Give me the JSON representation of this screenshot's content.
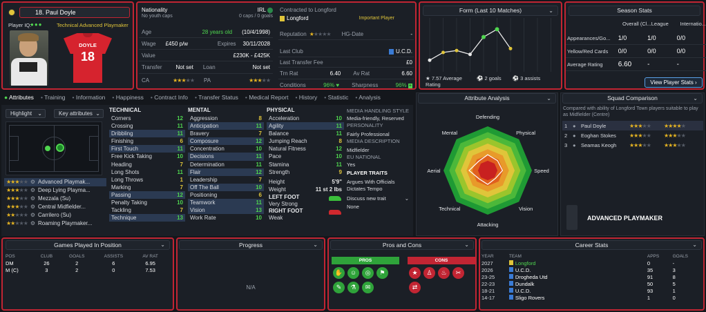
{
  "player": {
    "number_name": "18. Paul Doyle",
    "iq_label": "Player IQ:",
    "role": "Technical Advanced Playmaker",
    "shirt_name": "DOYLE",
    "shirt_number": "18"
  },
  "info": {
    "nationality_label": "Nationality",
    "nationality": "IRL",
    "nat_sub": "No youth caps",
    "nat_caps": "0 caps / 0 goals",
    "age_label": "Age",
    "age": "28 years old",
    "dob": "(10/4/1998)",
    "wage_label": "Wage",
    "wage": "£450 p/w",
    "expires_label": "Expires",
    "expires": "30/11/2028",
    "value_label": "Value",
    "value": "£230K - £425K",
    "transfer_label": "Transfer",
    "transfer": "Not set",
    "loan_label": "Loan",
    "loan": "Not set",
    "ca_label": "CA",
    "pa_label": "PA",
    "contracted_label": "Contracted to Longford",
    "club": "Longford",
    "status": "Important Player",
    "reputation_label": "Reputation",
    "hg_label": "HG-Date",
    "hg_value": "-",
    "last_club_label": "Last Club",
    "last_club": "U.C.D.",
    "ltf_label": "Last Transfer Fee",
    "ltf": "£0",
    "trn_label": "Trn Rat",
    "trn": "6.40",
    "av_label": "Av Rat",
    "av": "6.60",
    "cond_label": "Conditions",
    "cond": "96%",
    "sharp_label": "Sharpness",
    "sharp": "96%"
  },
  "form": {
    "title": "Form (Last 10 Matches)",
    "avg_label": "7.57 Average Rating",
    "goals": "2 goals",
    "assists": "3 assists",
    "ratings": [
      6.6,
      7.0,
      7.1,
      6.9,
      7.8,
      8.2,
      7.2
    ]
  },
  "season": {
    "title": "Season Stats",
    "cols": [
      "Overall (Cl...",
      "League",
      "Internatio..."
    ],
    "rows": [
      {
        "label": "Appearances/Go...",
        "a": "1/0",
        "b": "1/0",
        "c": "0/0"
      },
      {
        "label": "Yellow/Red Cards",
        "a": "0/0",
        "b": "0/0",
        "c": "0/0"
      },
      {
        "label": "Average Rating",
        "a": "6.60",
        "b": "-",
        "c": "-"
      }
    ],
    "button": "View Player Stats"
  },
  "tabs": [
    "Attributes",
    "Training",
    "Information",
    "Happiness",
    "Contract Info",
    "Transfer Status",
    "Medical Report",
    "History",
    "Statistic",
    "Analysis"
  ],
  "controls": {
    "highlight": "Highlight",
    "key_attr": "Key attributes"
  },
  "roles": [
    {
      "stars": 3,
      "name": "Advanced Playmak...",
      "hl": true
    },
    {
      "stars": 3,
      "name": "Deep Lying Playma..."
    },
    {
      "stars": 3,
      "name": "Mezzala (Su)"
    },
    {
      "stars": 3,
      "name": "Central Midfielder..."
    },
    {
      "stars": 2,
      "name": "Carrilero (Su)"
    },
    {
      "stars": 2,
      "name": "Roaming Playmaker..."
    }
  ],
  "technical": {
    "title": "TECHNICAL",
    "items": [
      [
        "Corners",
        "12",
        "g",
        false
      ],
      [
        "Crossing",
        "11",
        "g",
        false
      ],
      [
        "Dribbling",
        "11",
        "g",
        true
      ],
      [
        "Finishing",
        "6",
        "y",
        false
      ],
      [
        "First Touch",
        "11",
        "g",
        true
      ],
      [
        "Free Kick Taking",
        "10",
        "g",
        false
      ],
      [
        "Heading",
        "7",
        "y",
        false
      ],
      [
        "Long Shots",
        "11",
        "g",
        false
      ],
      [
        "Long Throws",
        "1",
        "y",
        false
      ],
      [
        "Marking",
        "7",
        "y",
        false
      ],
      [
        "Passing",
        "12",
        "g",
        true
      ],
      [
        "Penalty Taking",
        "10",
        "g",
        false
      ],
      [
        "Tackling",
        "7",
        "y",
        false
      ],
      [
        "Technique",
        "13",
        "g",
        true
      ]
    ]
  },
  "mental": {
    "title": "MENTAL",
    "items": [
      [
        "Aggression",
        "8",
        "y",
        false
      ],
      [
        "Anticipation",
        "11",
        "g",
        true
      ],
      [
        "Bravery",
        "7",
        "y",
        false
      ],
      [
        "Composure",
        "12",
        "g",
        true
      ],
      [
        "Concentration",
        "10",
        "g",
        false
      ],
      [
        "Decisions",
        "11",
        "g",
        true
      ],
      [
        "Determination",
        "11",
        "g",
        false
      ],
      [
        "Flair",
        "12",
        "g",
        true
      ],
      [
        "Leadership",
        "7",
        "y",
        false
      ],
      [
        "Off The Ball",
        "10",
        "g",
        true
      ],
      [
        "Positioning",
        "6",
        "y",
        false
      ],
      [
        "Teamwork",
        "11",
        "g",
        true
      ],
      [
        "Vision",
        "13",
        "g",
        true
      ],
      [
        "Work Rate",
        "10",
        "g",
        false
      ]
    ]
  },
  "physical": {
    "title": "PHYSICAL",
    "items": [
      [
        "Acceleration",
        "10",
        "g",
        false
      ],
      [
        "Agility",
        "11",
        "g",
        true
      ],
      [
        "Balance",
        "11",
        "g",
        false
      ],
      [
        "Jumping Reach",
        "8",
        "y",
        false
      ],
      [
        "Natural Fitness",
        "12",
        "g",
        false
      ],
      [
        "Pace",
        "10",
        "g",
        false
      ],
      [
        "Stamina",
        "11",
        "g",
        false
      ],
      [
        "Strength",
        "9",
        "y",
        false
      ]
    ],
    "height_label": "Height",
    "height": "5'9\"",
    "weight_label": "Weight",
    "weight": "11 st 2 lbs",
    "left_label": "LEFT FOOT",
    "left": "Very Strong",
    "right_label": "RIGHT FOOT",
    "right": "Weak"
  },
  "media": {
    "title": "MEDIA HANDLING STYLE",
    "style": "Media-friendly, Reserved",
    "pers_title": "PERSONALITY",
    "pers": "Fairly Professional",
    "desc_title": "MEDIA DESCRIPTION",
    "desc": "Midfielder",
    "eu_title": "EU NATIONAL",
    "eu": "Yes",
    "traits_title": "PLAYER TRAITS",
    "traits": [
      "Argues With Officials",
      "Dictates Tempo"
    ],
    "discuss": "Discuss new trait",
    "none": "None"
  },
  "analysis": {
    "title": "Attribute Analysis",
    "labels": [
      "Defending",
      "Physical",
      "Speed",
      "Vision",
      "Attacking",
      "Technical",
      "Aerial",
      "Mental"
    ],
    "values": [
      0.45,
      0.55,
      0.5,
      0.7,
      0.55,
      0.65,
      0.3,
      0.6
    ]
  },
  "squad": {
    "title": "Squad Comparison",
    "desc": "Compared with ability of Longford Town players suitable to play as Midfielder (Centre)",
    "rows": [
      {
        "rank": "1",
        "name": "Paul Doyle",
        "a": 3,
        "b": 3.5
      },
      {
        "rank": "2",
        "name": "Eoghan Stokes",
        "a": 2.5,
        "b": 3
      },
      {
        "rank": "3",
        "name": "Seamas Keogh",
        "a": 2.5,
        "b": 3
      }
    ],
    "role": "ADVANCED PLAYMAKER"
  },
  "games": {
    "title": "Games Played In Position",
    "cols": [
      "POS",
      "CLUB",
      "GOALS",
      "ASSISTS",
      "AV RAT"
    ],
    "rows": [
      [
        "DM",
        "26",
        "2",
        "6",
        "6.95"
      ],
      [
        "M (C)",
        "3",
        "2",
        "0",
        "7.53"
      ]
    ]
  },
  "progress": {
    "title": "Progress",
    "na": "N/A"
  },
  "pros": {
    "title": "Pros and Cons",
    "pros": "PROS",
    "cons": "CONS"
  },
  "career": {
    "title": "Career Stats",
    "cols": [
      "YEAR",
      "TEAM",
      "APPS",
      "GOALS"
    ],
    "rows": [
      [
        "2027",
        "Longford",
        "0",
        "-",
        true
      ],
      [
        "2026",
        "U.C.D.",
        "35",
        "3",
        false
      ],
      [
        "23-25",
        "Drogheda Utd",
        "91",
        "8",
        false
      ],
      [
        "22-23",
        "Dundalk",
        "50",
        "5",
        false
      ],
      [
        "18-21",
        "U.C.D.",
        "93",
        "1",
        false
      ],
      [
        "14-17",
        "Sligo Rovers",
        "1",
        "0",
        false
      ]
    ]
  },
  "colors": {
    "accent_red": "#c22533",
    "green": "#4fd64f",
    "yellow": "#e0c53a",
    "star": "#e6b422"
  }
}
